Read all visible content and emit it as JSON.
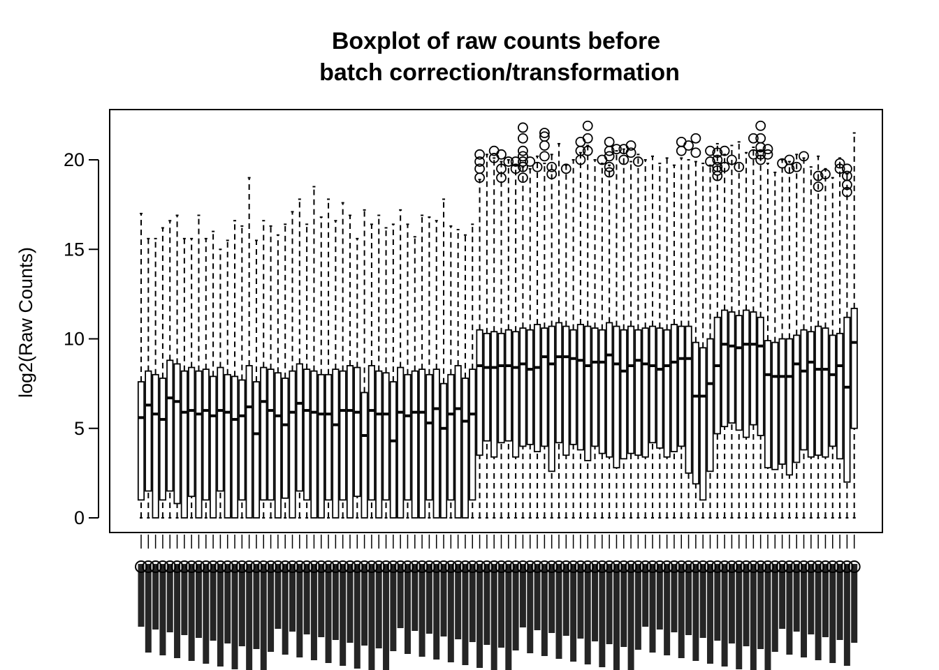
{
  "chart_data": {
    "type": "boxplot",
    "title_line1": "Boxplot of raw counts before",
    "title_line2": "batch correction/transformation",
    "xlabel": "",
    "ylabel": "log2(Raw Counts)",
    "ylim": [
      0,
      22
    ],
    "yticks": [
      0,
      5,
      10,
      15,
      20
    ],
    "ytick_labels": [
      "0",
      "5",
      "10",
      "15",
      "20"
    ],
    "n_samples": 100,
    "outlier_marker": "open circle",
    "box_color": "#000000",
    "background": "#ffffff",
    "groups": [
      {
        "samples": 47,
        "median": [
          5.6,
          6.3,
          5.8,
          5.5,
          6.7,
          6.5,
          5.9,
          6.0,
          5.8,
          6.0,
          5.7,
          6.0,
          5.9,
          5.5,
          5.7,
          6.2,
          4.7,
          6.5,
          6.0,
          5.7,
          5.2,
          5.9,
          6.4,
          6.0,
          5.9,
          5.8,
          5.8,
          5.2,
          6.0,
          6.0,
          5.9,
          4.6,
          6.0,
          5.8,
          5.8,
          4.3,
          5.9,
          5.7,
          5.9,
          5.9,
          5.3,
          6.1,
          5.0,
          5.8,
          6.1,
          5.4,
          5.8
        ],
        "q1": [
          1.0,
          1.5,
          0.0,
          1.0,
          1.5,
          0.8,
          0.0,
          1.2,
          0.0,
          1.0,
          0.0,
          1.5,
          0.0,
          0.0,
          1.0,
          0.0,
          0.0,
          1.0,
          1.0,
          0.0,
          1.1,
          0.0,
          1.5,
          1.0,
          0.0,
          0.0,
          1.0,
          0.0,
          1.0,
          0.0,
          1.2,
          0.0,
          1.0,
          0.0,
          1.0,
          0.0,
          0.0,
          1.0,
          0.0,
          0.0,
          1.0,
          0.0,
          0.0,
          1.0,
          0.0,
          0.0,
          1.0
        ],
        "q3": [
          7.6,
          8.2,
          8.0,
          7.8,
          8.8,
          8.6,
          8.2,
          8.4,
          8.2,
          8.3,
          7.9,
          8.4,
          8.0,
          7.9,
          7.7,
          8.5,
          7.6,
          8.4,
          8.3,
          8.1,
          7.8,
          8.2,
          8.6,
          8.3,
          8.2,
          8.0,
          8.0,
          8.3,
          8.2,
          8.5,
          8.4,
          7.0,
          8.5,
          8.2,
          8.1,
          7.6,
          8.4,
          8.0,
          8.2,
          8.3,
          8.0,
          8.3,
          7.5,
          8.0,
          8.5,
          7.8,
          8.3
        ],
        "whisker_low": 0.0,
        "whisker_high": [
          17.0,
          15.6,
          15.6,
          16.2,
          16.6,
          16.9,
          15.6,
          15.6,
          16.9,
          15.6,
          16.0,
          15.0,
          15.5,
          16.6,
          16.3,
          19.0,
          15.5,
          16.6,
          16.3,
          15.8,
          16.4,
          17.1,
          17.8,
          16.4,
          18.5,
          16.8,
          17.8,
          16.6,
          17.6,
          16.9,
          15.6,
          17.2,
          16.4,
          16.9,
          16.2,
          16.4,
          17.2,
          16.4,
          15.7,
          16.9,
          16.8,
          16.6,
          17.8,
          16.3,
          16.1,
          15.8,
          16.4
        ]
      },
      {
        "samples": 53,
        "median": [
          8.5,
          8.4,
          8.4,
          8.5,
          8.5,
          8.4,
          8.6,
          8.3,
          8.4,
          9.0,
          8.6,
          9.0,
          9.0,
          8.9,
          8.8,
          8.5,
          8.7,
          8.7,
          9.1,
          8.6,
          8.2,
          8.5,
          8.8,
          8.6,
          8.5,
          8.3,
          8.5,
          8.7,
          8.9,
          8.9,
          6.8,
          6.8,
          7.5,
          8.5,
          9.7,
          9.6,
          9.5,
          9.7,
          9.7,
          9.6,
          8.0,
          7.9,
          7.9,
          7.9,
          8.6,
          8.2,
          8.7,
          8.3,
          8.3,
          8.0,
          8.5,
          7.3,
          9.8
        ],
        "q1": [
          3.5,
          4.3,
          3.4,
          4.2,
          4.3,
          3.4,
          4.0,
          4.1,
          3.7,
          4.0,
          2.6,
          4.2,
          3.5,
          4.1,
          3.8,
          3.2,
          4.0,
          3.6,
          3.4,
          2.8,
          3.3,
          3.6,
          3.5,
          3.4,
          4.2,
          3.9,
          3.4,
          3.7,
          4.0,
          2.5,
          1.9,
          1.0,
          2.6,
          4.7,
          5.1,
          5.3,
          4.9,
          4.5,
          5.2,
          4.6,
          2.8,
          2.7,
          3.0,
          2.4,
          3.1,
          3.8,
          3.4,
          3.5,
          3.4,
          4.0,
          3.3,
          2.0,
          5.0
        ],
        "q3": [
          10.5,
          10.3,
          10.4,
          10.3,
          10.5,
          10.4,
          10.6,
          10.5,
          10.8,
          10.6,
          10.7,
          10.9,
          10.7,
          10.5,
          10.8,
          10.7,
          10.6,
          10.5,
          10.9,
          10.7,
          10.5,
          10.7,
          10.5,
          10.6,
          10.7,
          10.6,
          10.5,
          10.8,
          10.7,
          10.7,
          9.8,
          9.5,
          10.0,
          11.2,
          11.6,
          11.5,
          11.3,
          11.6,
          11.5,
          11.2,
          9.9,
          9.8,
          10.0,
          10.0,
          10.2,
          10.5,
          10.4,
          10.7,
          10.6,
          10.2,
          10.3,
          11.2,
          11.7
        ],
        "whisker_low": 0.0,
        "whisker_high": [
          18.9,
          20.3,
          20.1,
          19.9,
          20.0,
          19.7,
          19.6,
          19.5,
          20.2,
          19.8,
          20.3,
          20.9,
          19.7,
          20.0,
          20.4,
          20.8,
          20.0,
          19.8,
          19.7,
          20.5,
          20.6,
          19.9,
          20.3,
          20.0,
          20.2,
          19.8,
          20.1,
          19.7,
          20.1,
          20.0,
          19.9,
          19.8,
          19.7,
          20.9,
          20.3,
          20.8,
          21.0,
          20.4,
          20.7,
          20.5,
          19.8,
          19.3,
          20.0,
          19.9,
          20.3,
          20.1,
          19.6,
          20.2,
          19.5,
          19.0,
          20.1,
          19.2,
          21.5
        ],
        "outliers": [
          [
            0,
            19.0
          ],
          [
            0,
            19.5
          ],
          [
            0,
            19.9
          ],
          [
            0,
            20.3
          ],
          [
            2,
            20.5
          ],
          [
            2,
            20.1
          ],
          [
            3,
            19.0
          ],
          [
            3,
            19.5
          ],
          [
            3,
            20.3
          ],
          [
            4,
            19.9
          ],
          [
            5,
            19.5
          ],
          [
            5,
            19.9
          ],
          [
            6,
            19.0
          ],
          [
            6,
            19.6
          ],
          [
            6,
            19.9
          ],
          [
            6,
            20.2
          ],
          [
            6,
            20.5
          ],
          [
            6,
            21.2
          ],
          [
            6,
            21.8
          ],
          [
            7,
            19.9
          ],
          [
            8,
            19.6
          ],
          [
            9,
            20.2
          ],
          [
            9,
            20.8
          ],
          [
            9,
            21.3
          ],
          [
            9,
            21.5
          ],
          [
            10,
            19.2
          ],
          [
            10,
            19.6
          ],
          [
            12,
            19.5
          ],
          [
            14,
            20.0
          ],
          [
            14,
            20.5
          ],
          [
            14,
            21.0
          ],
          [
            15,
            20.5
          ],
          [
            15,
            21.2
          ],
          [
            15,
            21.9
          ],
          [
            17,
            20.0
          ],
          [
            18,
            19.3
          ],
          [
            18,
            19.6
          ],
          [
            18,
            20.2
          ],
          [
            18,
            20.5
          ],
          [
            18,
            21.0
          ],
          [
            19,
            20.6
          ],
          [
            20,
            20.0
          ],
          [
            20,
            20.6
          ],
          [
            21,
            20.4
          ],
          [
            21,
            20.8
          ],
          [
            22,
            19.9
          ],
          [
            28,
            21.0
          ],
          [
            28,
            20.5
          ],
          [
            29,
            20.8
          ],
          [
            30,
            21.2
          ],
          [
            30,
            20.4
          ],
          [
            32,
            20.5
          ],
          [
            32,
            19.9
          ],
          [
            33,
            19.1
          ],
          [
            33,
            19.4
          ],
          [
            33,
            19.6
          ],
          [
            33,
            20.0
          ],
          [
            33,
            20.4
          ],
          [
            34,
            19.6
          ],
          [
            34,
            20.5
          ],
          [
            35,
            20.0
          ],
          [
            36,
            19.6
          ],
          [
            38,
            21.2
          ],
          [
            38,
            20.3
          ],
          [
            39,
            21.9
          ],
          [
            39,
            21.2
          ],
          [
            39,
            20.7
          ],
          [
            39,
            20.3
          ],
          [
            39,
            20.0
          ],
          [
            40,
            20.3
          ],
          [
            40,
            20.6
          ],
          [
            42,
            19.8
          ],
          [
            43,
            19.5
          ],
          [
            43,
            20.0
          ],
          [
            44,
            19.6
          ],
          [
            45,
            20.2
          ],
          [
            47,
            18.5
          ],
          [
            47,
            19.1
          ],
          [
            48,
            19.2
          ],
          [
            50,
            19.5
          ],
          [
            50,
            19.8
          ],
          [
            51,
            18.2
          ],
          [
            51,
            18.6
          ],
          [
            51,
            19.1
          ],
          [
            51,
            19.5
          ]
        ]
      }
    ],
    "x_tick_labels": "overlapping rotated sample names (illegible)"
  }
}
